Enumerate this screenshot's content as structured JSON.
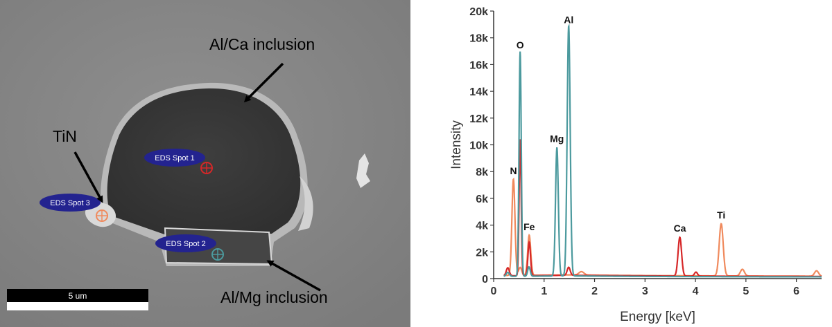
{
  "sem_image": {
    "annotations": [
      {
        "text": "Al/Ca inclusion"
      },
      {
        "text": "TiN"
      },
      {
        "text": "Al/Mg inclusion"
      }
    ],
    "spots": [
      {
        "label": "EDS Spot 1",
        "color": "#d62728"
      },
      {
        "label": "EDS Spot 2",
        "color": "#4c9a9e"
      },
      {
        "label": "EDS Spot 3",
        "color": "#f08a5d"
      }
    ],
    "spot_badge_color": "#23238f",
    "scale_bar": {
      "label": "5 um"
    }
  },
  "chart_data": {
    "type": "line",
    "title": "",
    "xlabel": "Energy [keV]",
    "ylabel": "Intensity",
    "xlim": [
      0,
      6.5
    ],
    "ylim": [
      0,
      20000
    ],
    "x_ticks": [
      0,
      1,
      2,
      3,
      4,
      5,
      6
    ],
    "y_ticks": [
      {
        "value": 0,
        "label": "0"
      },
      {
        "value": 2000,
        "label": "2k"
      },
      {
        "value": 4000,
        "label": "4k"
      },
      {
        "value": 6000,
        "label": "6k"
      },
      {
        "value": 8000,
        "label": "8k"
      },
      {
        "value": 10000,
        "label": "10k"
      },
      {
        "value": 12000,
        "label": "12k"
      },
      {
        "value": 14000,
        "label": "14k"
      },
      {
        "value": 16000,
        "label": "16k"
      },
      {
        "value": 18000,
        "label": "18k"
      },
      {
        "value": 20000,
        "label": "20k"
      }
    ],
    "grid": false,
    "legend": "none",
    "series": [
      {
        "color": "#4c9a9e",
        "baseline": 200,
        "peaks": [
          [
            0.28,
            300,
            0.03
          ],
          [
            0.525,
            16800,
            0.022
          ],
          [
            0.7,
            700,
            0.025
          ],
          [
            1.254,
            9600,
            0.028
          ],
          [
            1.487,
            18700,
            0.03
          ]
        ]
      },
      {
        "color": "#d62728",
        "baseline": 250,
        "peaks": [
          [
            0.28,
            600,
            0.03
          ],
          [
            0.525,
            10200,
            0.02
          ],
          [
            0.705,
            2500,
            0.025
          ],
          [
            1.487,
            600,
            0.03
          ],
          [
            3.69,
            2900,
            0.035
          ],
          [
            4.01,
            300,
            0.03
          ]
        ]
      },
      {
        "color": "#f08a5d",
        "baseline": 280,
        "peaks": [
          [
            0.392,
            7200,
            0.03
          ],
          [
            0.525,
            600,
            0.03
          ],
          [
            0.705,
            3000,
            0.03
          ],
          [
            1.74,
            250,
            0.05
          ],
          [
            4.51,
            3900,
            0.04
          ],
          [
            4.93,
            500,
            0.04
          ],
          [
            6.4,
            400,
            0.04
          ]
        ]
      }
    ],
    "peak_labels": [
      {
        "text": "O",
        "x": 0.525,
        "y": 17000
      },
      {
        "text": "Al",
        "x": 1.487,
        "y": 18900
      },
      {
        "text": "Mg",
        "x": 1.254,
        "y": 10000
      },
      {
        "text": "N",
        "x": 0.392,
        "y": 7600
      },
      {
        "text": "Fe",
        "x": 0.705,
        "y": 3400
      },
      {
        "text": "Ca",
        "x": 3.69,
        "y": 3300
      },
      {
        "text": "Ti",
        "x": 4.51,
        "y": 4300
      }
    ]
  }
}
